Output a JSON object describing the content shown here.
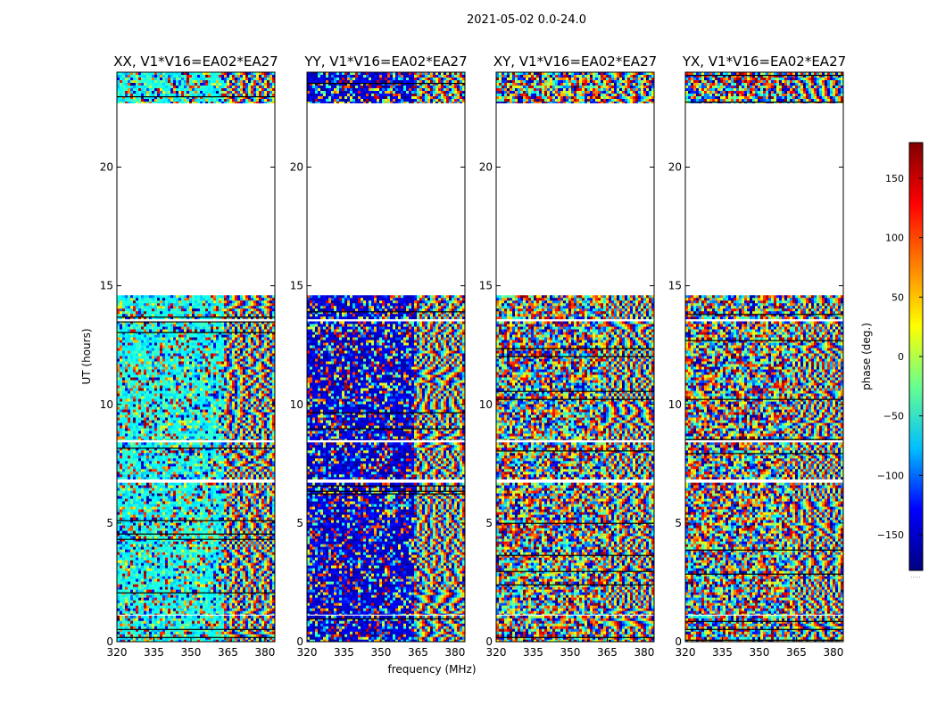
{
  "figure_title": "2021-05-02 0.0-24.0",
  "chart_data": {
    "type": "heatmap",
    "suptitle": "2021-05-02 0.0-24.0",
    "xlabel": "frequency (MHz)",
    "ylabel": "UT (hours)",
    "xlim": [
      320,
      384
    ],
    "ylim": [
      0,
      24
    ],
    "xticks": [
      320,
      335,
      350,
      365,
      380
    ],
    "yticks": [
      0,
      5,
      10,
      15,
      20
    ],
    "grid": false,
    "colorbar": {
      "label": "phase (deg.)",
      "range": [
        -180,
        180
      ],
      "ticks": [
        -150,
        -100,
        -50,
        0,
        50,
        100,
        150
      ],
      "colormap": "jet",
      "colors": [
        "#000080",
        "#0000ff",
        "#00bfff",
        "#66ff90",
        "#ffff00",
        "#ff8000",
        "#ff0000",
        "#800000"
      ]
    },
    "panels": [
      {
        "title": "XX, V1*V16=EA02*EA27",
        "polarization": "XX",
        "dominant_phase": -40
      },
      {
        "title": "YY, V1*V16=EA02*EA27",
        "polarization": "YY",
        "dominant_phase": -150
      },
      {
        "title": "XY, V1*V16=EA02*EA27",
        "polarization": "XY",
        "dominant_phase": null
      },
      {
        "title": "YX, V1*V16=EA02*EA27",
        "polarization": "YX",
        "dominant_phase": null
      }
    ],
    "data_segments_ut": [
      [
        0.0,
        1.1
      ],
      [
        1.15,
        6.7
      ],
      [
        6.85,
        8.4
      ],
      [
        8.5,
        13.5
      ],
      [
        13.6,
        14.6
      ],
      [
        22.7,
        24.0
      ]
    ],
    "blank_interval_ut": [
      14.6,
      22.7
    ],
    "smooth_band_start_mhz": 363,
    "annotation": "....."
  }
}
